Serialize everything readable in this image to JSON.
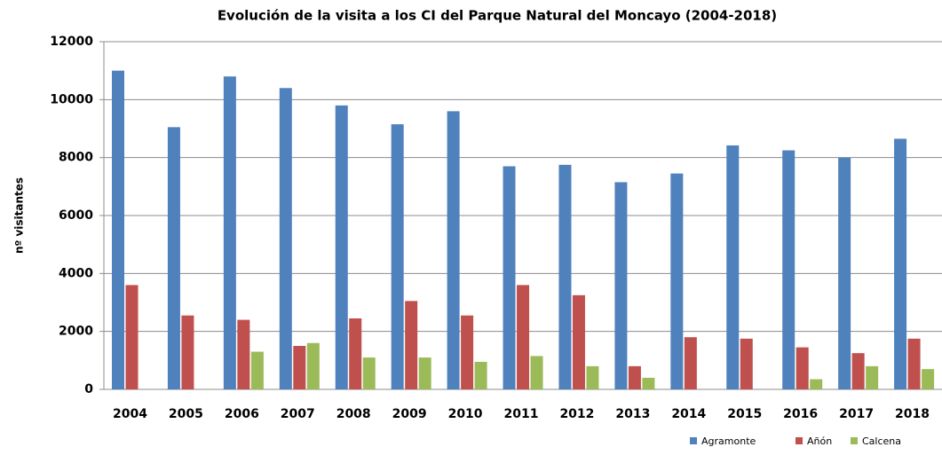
{
  "chart_data": {
    "type": "bar",
    "title": "Evolución de la visita a los CI del Parque Natural del Moncayo (2004-2018)",
    "y_label": "nº visitantes",
    "categories": [
      "2004",
      "2005",
      "2006",
      "2007",
      "2008",
      "2009",
      "2010",
      "2011",
      "2012",
      "2013",
      "2014",
      "2015",
      "2016",
      "2017",
      "2018"
    ],
    "series": [
      {
        "name": "Agramonte",
        "color": "#4f81bd",
        "values": [
          11000,
          9050,
          10800,
          10400,
          9800,
          9150,
          9600,
          7700,
          7750,
          7150,
          7450,
          8420,
          8250,
          8000,
          8650
        ]
      },
      {
        "name": "Añón",
        "color": "#c0504d",
        "values": [
          3600,
          2550,
          2400,
          1500,
          2450,
          3050,
          2550,
          3600,
          3250,
          800,
          1800,
          1750,
          1450,
          1250,
          1750
        ]
      },
      {
        "name": "Calcena",
        "color": "#9bbb59",
        "values": [
          0,
          0,
          1300,
          1600,
          1100,
          1100,
          950,
          1150,
          800,
          400,
          0,
          0,
          350,
          800,
          700
        ]
      }
    ],
    "ylim": [
      0,
      12000
    ],
    "yticks": [
      0,
      2000,
      4000,
      6000,
      8000,
      10000,
      12000
    ],
    "grid": true,
    "legend": "bottom-right"
  }
}
